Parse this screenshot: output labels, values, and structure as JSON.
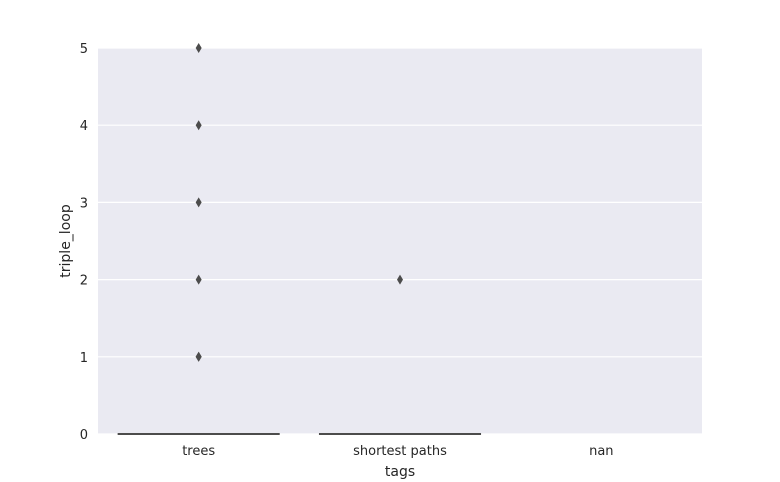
{
  "chart_data": {
    "type": "box",
    "title": "",
    "xlabel": "tags",
    "ylabel": "triple_loop",
    "categories": [
      "trees",
      "shortest paths",
      "nan"
    ],
    "yticks": [
      0,
      1,
      2,
      3,
      4,
      5
    ],
    "ylim": [
      0,
      5
    ],
    "grid": true,
    "legend": "none",
    "boxes": [
      {
        "category": "trees",
        "q1": 0,
        "median": 0,
        "q3": 0,
        "whisker_low": 0,
        "whisker_high": 0,
        "outliers": [
          1,
          1,
          2,
          3,
          4,
          5
        ]
      },
      {
        "category": "shortest paths",
        "q1": 0,
        "median": 0,
        "q3": 0,
        "whisker_low": 0,
        "whisker_high": 0,
        "outliers": [
          2
        ]
      },
      {
        "category": "nan",
        "q1": null,
        "median": null,
        "q3": null,
        "whisker_low": null,
        "whisker_high": null,
        "outliers": []
      }
    ],
    "colors": {
      "plot_background": "#eaeaf2",
      "grid": "#ffffff",
      "box": "#4c4c4c",
      "text": "#262626"
    }
  }
}
